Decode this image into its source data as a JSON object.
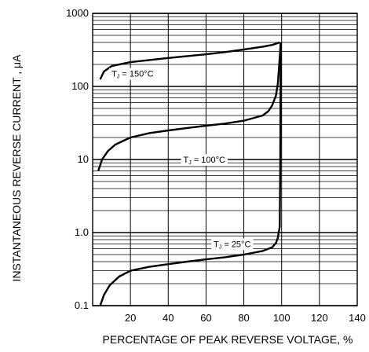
{
  "chart_data": {
    "type": "line",
    "title": "",
    "xlabel": "PERCENTAGE OF PEAK REVERSE VOLTAGE, %",
    "ylabel": "INSTANTANEOUS REVERSE CURRENT , μA",
    "xlim": [
      0,
      140
    ],
    "ylim": [
      0.1,
      1000
    ],
    "y_scale": "log",
    "grid": true,
    "x_ticks": [
      20,
      40,
      60,
      80,
      100,
      120,
      140
    ],
    "x_tick_labels": [
      "20",
      "40",
      "60",
      "80",
      "100",
      "120",
      "140"
    ],
    "y_ticks": [
      0.1,
      1,
      10,
      100,
      1000
    ],
    "y_tick_labels": [
      "0.1",
      "1.0",
      "10",
      "100",
      "1000"
    ],
    "series": [
      {
        "name": "TJ = 150°C",
        "label_parts": [
          "T",
          "J",
          " = 150°C"
        ],
        "label_at": [
          10,
          150
        ],
        "points": [
          [
            4,
            125
          ],
          [
            6,
            160
          ],
          [
            10,
            190
          ],
          [
            20,
            215
          ],
          [
            30,
            230
          ],
          [
            40,
            245
          ],
          [
            50,
            260
          ],
          [
            60,
            275
          ],
          [
            70,
            295
          ],
          [
            80,
            320
          ],
          [
            90,
            350
          ],
          [
            95,
            370
          ],
          [
            99,
            400
          ]
        ]
      },
      {
        "name": "TJ = 100°C",
        "label_parts": [
          "T",
          "J",
          " = 100°C"
        ],
        "label_at": [
          48,
          10
        ],
        "points": [
          [
            3,
            7
          ],
          [
            5,
            10
          ],
          [
            8,
            13
          ],
          [
            12,
            16
          ],
          [
            20,
            20
          ],
          [
            30,
            23
          ],
          [
            40,
            25
          ],
          [
            50,
            27
          ],
          [
            60,
            29
          ],
          [
            70,
            31
          ],
          [
            80,
            34
          ],
          [
            90,
            40
          ],
          [
            93,
            46
          ],
          [
            95,
            55
          ],
          [
            97,
            75
          ],
          [
            98,
            110
          ],
          [
            99,
            250
          ],
          [
            99.5,
            400
          ]
        ]
      },
      {
        "name": "TJ = 25°C",
        "label_parts": [
          "T",
          "J",
          " = 25°C"
        ],
        "label_at": [
          64,
          0.7
        ],
        "points": [
          [
            4,
            0.1
          ],
          [
            6,
            0.14
          ],
          [
            9,
            0.19
          ],
          [
            14,
            0.25
          ],
          [
            20,
            0.3
          ],
          [
            30,
            0.34
          ],
          [
            40,
            0.37
          ],
          [
            50,
            0.4
          ],
          [
            60,
            0.43
          ],
          [
            70,
            0.46
          ],
          [
            80,
            0.5
          ],
          [
            90,
            0.56
          ],
          [
            95,
            0.63
          ],
          [
            97,
            0.72
          ],
          [
            98,
            0.85
          ],
          [
            99,
            1.2
          ],
          [
            99.3,
            10
          ],
          [
            99.5,
            400
          ]
        ]
      }
    ]
  }
}
